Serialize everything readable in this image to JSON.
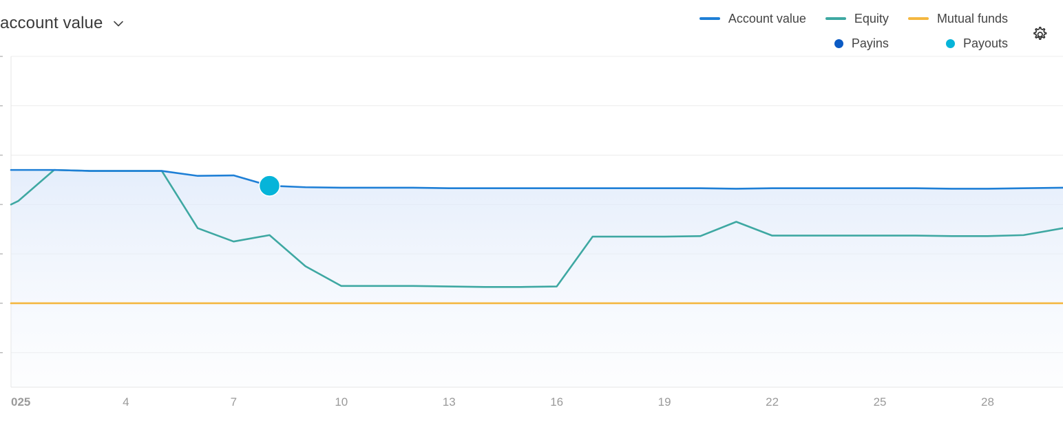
{
  "header": {
    "title": "account value",
    "dropdown_icon": "chevron-down-icon",
    "settings_icon": "gear-icon"
  },
  "colors": {
    "account_value": "#1e7fd6",
    "equity": "#3ea8a2",
    "mutual_funds": "#f4b740",
    "payins": "#0b5bc4",
    "payouts": "#06b4d9",
    "grid": "#ececec"
  },
  "legend": [
    {
      "label": "Account value",
      "marker": "line",
      "color": "#1e7fd6"
    },
    {
      "label": "Equity",
      "marker": "line",
      "color": "#3ea8a2"
    },
    {
      "label": "Mutual funds",
      "marker": "line",
      "color": "#f4b740"
    },
    {
      "label": "Payins",
      "marker": "dot",
      "color": "#0b5bc4"
    },
    {
      "label": "Payouts",
      "marker": "dot",
      "color": "#06b4d9"
    }
  ],
  "chart_data": {
    "type": "line",
    "x": [
      0.8,
      1,
      2,
      3,
      4,
      5,
      6,
      7,
      8,
      9,
      10,
      11,
      12,
      13,
      14,
      15,
      16,
      17,
      18,
      19,
      20,
      21,
      22,
      23,
      24,
      25,
      26,
      27,
      28,
      29,
      30.1
    ],
    "xlim": [
      0.8,
      30.1
    ],
    "x_ticks": [
      "025",
      "4",
      "7",
      "10",
      "13",
      "16",
      "19",
      "22",
      "25",
      "28"
    ],
    "x_tick_values": [
      0.8,
      4,
      7,
      10,
      13,
      16,
      19,
      22,
      25,
      28
    ],
    "ylim": [
      -1.7,
      5
    ],
    "grid_y": [
      -1,
      0,
      1,
      2,
      3,
      4,
      5
    ],
    "grid": true,
    "series": [
      {
        "name": "Account value",
        "values": [
          2.7,
          2.7,
          2.7,
          2.68,
          2.68,
          2.68,
          2.58,
          2.59,
          2.38,
          2.35,
          2.34,
          2.34,
          2.34,
          2.33,
          2.33,
          2.33,
          2.33,
          2.33,
          2.33,
          2.33,
          2.33,
          2.32,
          2.33,
          2.33,
          2.33,
          2.33,
          2.33,
          2.32,
          2.32,
          2.33,
          2.34
        ]
      },
      {
        "name": "Equity",
        "values": [
          2.0,
          2.07,
          2.7,
          2.68,
          2.68,
          2.68,
          1.52,
          1.25,
          1.38,
          0.75,
          0.35,
          0.35,
          0.35,
          0.34,
          0.33,
          0.33,
          0.34,
          1.35,
          1.35,
          1.35,
          1.36,
          1.65,
          1.37,
          1.37,
          1.37,
          1.37,
          1.37,
          1.36,
          1.36,
          1.38,
          1.52
        ]
      },
      {
        "name": "Mutual funds",
        "values": [
          0,
          0,
          0,
          0,
          0,
          0,
          0,
          0,
          0,
          0,
          0,
          0,
          0,
          0,
          0,
          0,
          0,
          0,
          0,
          0,
          0,
          0,
          0,
          0,
          0,
          0,
          0,
          0,
          0,
          0,
          0
        ]
      }
    ],
    "markers": [
      {
        "series": "Payouts",
        "x": 8,
        "y": 2.38
      }
    ],
    "legend_position": "top-right"
  }
}
